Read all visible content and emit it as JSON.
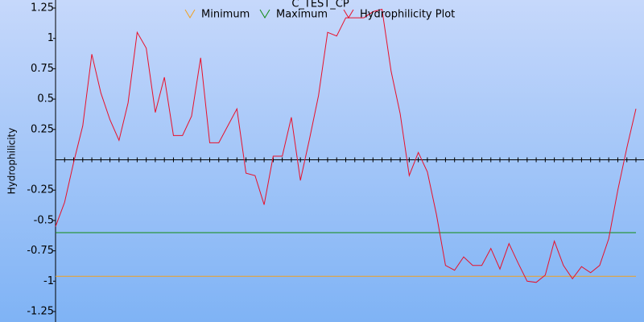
{
  "chart_data": {
    "type": "line",
    "title": "C_TEST_CP",
    "y_label": "Hydrophilicity",
    "x": [
      1,
      2,
      3,
      4,
      5,
      6,
      7,
      8,
      9,
      10,
      11,
      12,
      13,
      14,
      15,
      16,
      17,
      18,
      19,
      20,
      21,
      22,
      23,
      24,
      25,
      26,
      27,
      28,
      29,
      30,
      31,
      32,
      33,
      34,
      35,
      36,
      37,
      38,
      39,
      40,
      41,
      42,
      43,
      44,
      45,
      46,
      47,
      48,
      49,
      50,
      51,
      52,
      53,
      54,
      55,
      56,
      57,
      58,
      59,
      60,
      61,
      62,
      63,
      64,
      65
    ],
    "xlim": [
      1,
      65
    ],
    "ylim": [
      -1.25,
      1.25
    ],
    "yticks": [
      1.25,
      1,
      0.75,
      0.5,
      0.25,
      -0.25,
      -0.5,
      -0.75,
      -1,
      -1.25
    ],
    "series": [
      {
        "name": "Minimum",
        "color": "#f0a020",
        "values": [
          -0.96,
          -0.96,
          -0.96,
          -0.96,
          -0.96,
          -0.96,
          -0.96,
          -0.96,
          -0.96,
          -0.96,
          -0.96,
          -0.96,
          -0.96,
          -0.96,
          -0.96,
          -0.96,
          -0.96,
          -0.96,
          -0.96,
          -0.96,
          -0.96,
          -0.96,
          -0.96,
          -0.96,
          -0.96,
          -0.96,
          -0.96,
          -0.96,
          -0.96,
          -0.96,
          -0.96,
          -0.96,
          -0.96,
          -0.96,
          -0.96,
          -0.96,
          -0.96,
          -0.96,
          -0.96,
          -0.96,
          -0.96,
          -0.96,
          -0.96,
          -0.96,
          -0.96,
          -0.96,
          -0.96,
          -0.96,
          -0.96,
          -0.96,
          -0.96,
          -0.96,
          -0.96,
          -0.96,
          -0.96,
          -0.96,
          -0.96,
          -0.96,
          -0.96,
          -0.96,
          -0.96,
          -0.96,
          -0.96,
          -0.96,
          -0.96
        ]
      },
      {
        "name": "Maximum",
        "color": "#128a12",
        "values": [
          -0.6,
          -0.6,
          -0.6,
          -0.6,
          -0.6,
          -0.6,
          -0.6,
          -0.6,
          -0.6,
          -0.6,
          -0.6,
          -0.6,
          -0.6,
          -0.6,
          -0.6,
          -0.6,
          -0.6,
          -0.6,
          -0.6,
          -0.6,
          -0.6,
          -0.6,
          -0.6,
          -0.6,
          -0.6,
          -0.6,
          -0.6,
          -0.6,
          -0.6,
          -0.6,
          -0.6,
          -0.6,
          -0.6,
          -0.6,
          -0.6,
          -0.6,
          -0.6,
          -0.6,
          -0.6,
          -0.6,
          -0.6,
          -0.6,
          -0.6,
          -0.6,
          -0.6,
          -0.6,
          -0.6,
          -0.6,
          -0.6,
          -0.6,
          -0.6,
          -0.6,
          -0.6,
          -0.6,
          -0.6,
          -0.6,
          -0.6,
          -0.6,
          -0.6,
          -0.6,
          -0.6,
          -0.6,
          -0.6,
          -0.6,
          -0.6
        ]
      },
      {
        "name": "Hydrophilicity Plot",
        "color": "#e8102a",
        "values": [
          -0.55,
          -0.35,
          -0.02,
          0.28,
          0.87,
          0.55,
          0.33,
          0.16,
          0.47,
          1.05,
          0.92,
          0.39,
          0.68,
          0.2,
          0.2,
          0.36,
          0.84,
          0.14,
          0.14,
          0.28,
          0.42,
          -0.11,
          -0.13,
          -0.37,
          0.03,
          0.03,
          0.35,
          -0.17,
          0.17,
          0.53,
          1.05,
          1.02,
          1.17,
          1.17,
          1.17,
          1.22,
          1.24,
          0.73,
          0.38,
          -0.13,
          0.06,
          -0.1,
          -0.45,
          -0.87,
          -0.91,
          -0.8,
          -0.87,
          -0.87,
          -0.73,
          -0.9,
          -0.69,
          -0.85,
          -1.0,
          -1.01,
          -0.95,
          -0.67,
          -0.87,
          -0.98,
          -0.88,
          -0.93,
          -0.87,
          -0.65,
          -0.25,
          0.1,
          0.42
        ]
      }
    ]
  }
}
